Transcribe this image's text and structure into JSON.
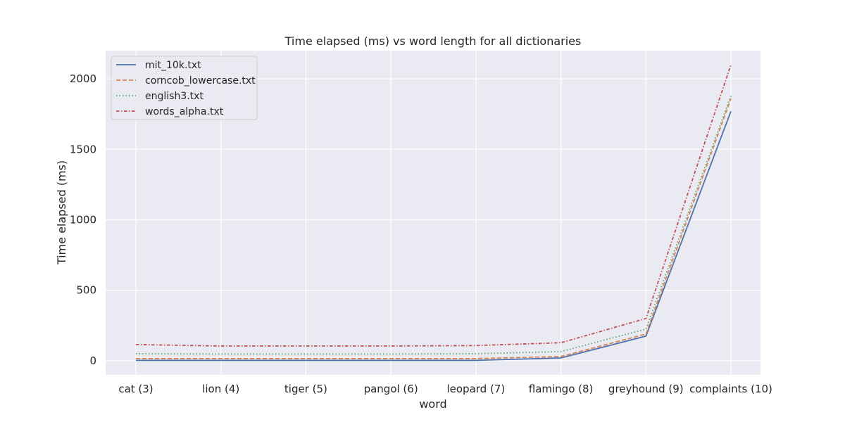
{
  "chart_data": {
    "type": "line",
    "title": "Time elapsed (ms) vs word length for all dictionaries",
    "xlabel": "word",
    "ylabel": "Time elapsed (ms)",
    "categories": [
      "cat (3)",
      "lion (4)",
      "tiger (5)",
      "pangol (6)",
      "leopard (7)",
      "flamingo (8)",
      "greyhound (9)",
      "complaints (10)"
    ],
    "yticks": [
      0,
      500,
      1000,
      1500,
      2000
    ],
    "ylim": [
      -100,
      2200
    ],
    "grid": true,
    "legend_position": "top-left",
    "series": [
      {
        "name": "mit_10k.txt",
        "color": "#4c72b0",
        "dash": "solid",
        "values": [
          3,
          3,
          3,
          3,
          3,
          20,
          175,
          1770
        ]
      },
      {
        "name": "corncob_lowercase.txt",
        "color": "#dd8452",
        "dash": "dashed",
        "values": [
          15,
          15,
          15,
          15,
          15,
          30,
          190,
          1860
        ]
      },
      {
        "name": "english3.txt",
        "color": "#55a868",
        "dash": "dotted",
        "values": [
          50,
          48,
          48,
          48,
          50,
          65,
          225,
          1880
        ]
      },
      {
        "name": "words_alpha.txt",
        "color": "#c44e52",
        "dash": "dashdot",
        "values": [
          115,
          105,
          105,
          105,
          108,
          128,
          300,
          2100
        ]
      }
    ]
  }
}
